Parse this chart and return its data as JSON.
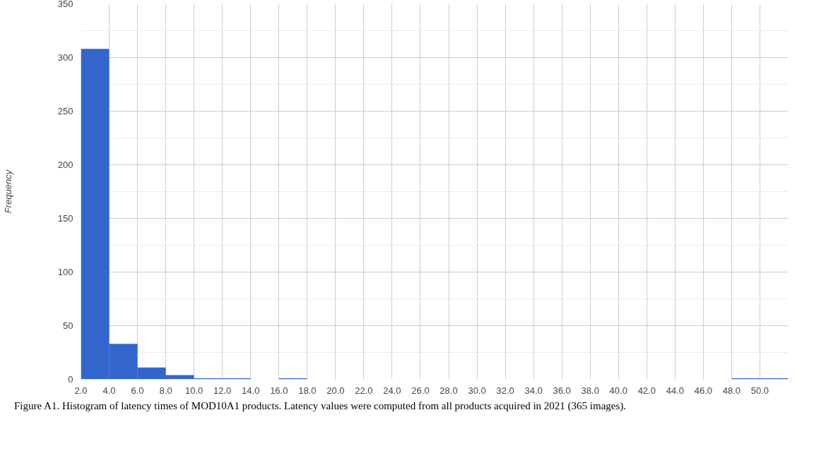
{
  "chart_data": {
    "type": "histogram",
    "ylabel": "Frequency",
    "color": "#3366cc",
    "bins": [
      2,
      4,
      6,
      8,
      10,
      12,
      14,
      16,
      18,
      20,
      22,
      24,
      26,
      28,
      30,
      32,
      34,
      36,
      38,
      40,
      42,
      44,
      46,
      48,
      50,
      52
    ],
    "values": [
      308,
      33,
      11,
      4,
      1,
      1,
      0,
      1,
      0,
      0,
      0,
      0,
      0,
      0,
      0,
      0,
      0,
      0,
      0,
      0,
      0,
      0,
      0,
      1,
      1
    ],
    "xlim": [
      2,
      52
    ],
    "ylim": [
      0,
      350
    ],
    "xticks": [
      {
        "value": 2,
        "label": "2.0"
      },
      {
        "value": 4,
        "label": "4.0"
      },
      {
        "value": 6,
        "label": "6.0"
      },
      {
        "value": 8,
        "label": "8.0"
      },
      {
        "value": 10,
        "label": "10.0"
      },
      {
        "value": 12,
        "label": "12.0"
      },
      {
        "value": 14,
        "label": "14.0"
      },
      {
        "value": 16,
        "label": "16.0"
      },
      {
        "value": 18,
        "label": "18.0"
      },
      {
        "value": 20,
        "label": "20.0"
      },
      {
        "value": 22,
        "label": "22.0"
      },
      {
        "value": 24,
        "label": "24.0"
      },
      {
        "value": 26,
        "label": "26.0"
      },
      {
        "value": 28,
        "label": "28.0"
      },
      {
        "value": 30,
        "label": "30.0"
      },
      {
        "value": 32,
        "label": "32.0"
      },
      {
        "value": 34,
        "label": "34.0"
      },
      {
        "value": 36,
        "label": "36.0"
      },
      {
        "value": 38,
        "label": "38.0"
      },
      {
        "value": 40,
        "label": "40.0"
      },
      {
        "value": 42,
        "label": "42.0"
      },
      {
        "value": 44,
        "label": "44.0"
      },
      {
        "value": 46,
        "label": "46.0"
      },
      {
        "value": 48,
        "label": "48.0"
      },
      {
        "value": 50,
        "label": "50.0"
      }
    ],
    "yticks": [
      0,
      50,
      100,
      150,
      200,
      250,
      300,
      350
    ],
    "grid": true,
    "annotations": [
      "Figure A1. Histogram of latency times of MOD10A1 products. Latency values were computed from all products acquired in 2021 (365 images)."
    ]
  }
}
